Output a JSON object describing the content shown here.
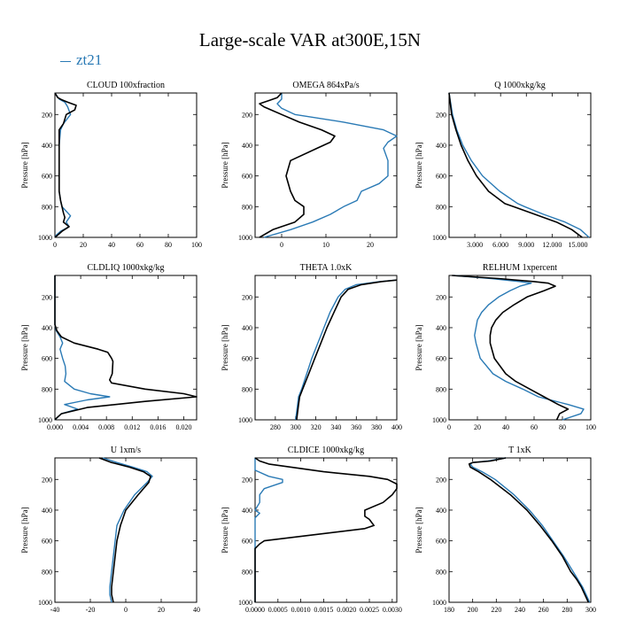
{
  "title": "Large-scale VAR at300E,15N",
  "legend": {
    "label": "zt21",
    "color": "#2a7ab5"
  },
  "colors": {
    "black_series": "#000000",
    "blue_series": "#2a7ab5"
  },
  "chart_data": [
    {
      "type": "line",
      "title": "CLOUD  100xfraction",
      "ylabel": "Pressure [hPa]",
      "ylim": [
        1000,
        60
      ],
      "yticks": [
        "200",
        "400",
        "600",
        "800",
        "1000"
      ],
      "xlim": [
        0,
        100
      ],
      "xticks": [
        "0",
        "20",
        "40",
        "60",
        "80",
        "100"
      ],
      "xtick_values": [
        0,
        20,
        40,
        60,
        80,
        100
      ],
      "series": [
        {
          "color": "black",
          "y": [
            60,
            90,
            105,
            120,
            140,
            170,
            200,
            260,
            300,
            400,
            500,
            600,
            700,
            760,
            800,
            840,
            870,
            900,
            930,
            960,
            985,
            1000
          ],
          "x": [
            0,
            2,
            5,
            9,
            15,
            14,
            8,
            6,
            3,
            3,
            3,
            3,
            3,
            4,
            5,
            6,
            7,
            6,
            10,
            5,
            2,
            0
          ]
        },
        {
          "color": "blue",
          "y": [
            60,
            100,
            120,
            150,
            200,
            260,
            300,
            400,
            500,
            600,
            700,
            760,
            800,
            830,
            860,
            900,
            930,
            960,
            985,
            1000
          ],
          "x": [
            0,
            3,
            7,
            9,
            11,
            6,
            4,
            3,
            3,
            3,
            3,
            4,
            5,
            8,
            11,
            8,
            10,
            4,
            1,
            0
          ]
        }
      ]
    },
    {
      "type": "line",
      "title": "OMEGA  864xPa/s",
      "ylabel": "Pressure [hPa]",
      "ylim": [
        1000,
        60
      ],
      "yticks": [
        "200",
        "400",
        "600",
        "800",
        "1000"
      ],
      "xlim": [
        -6,
        26
      ],
      "xticks": [
        "0",
        "10",
        "20"
      ],
      "xtick_values": [
        0,
        10,
        20
      ],
      "series": [
        {
          "color": "black",
          "y": [
            60,
            90,
            110,
            130,
            150,
            200,
            250,
            300,
            340,
            380,
            420,
            500,
            600,
            700,
            760,
            800,
            850,
            900,
            950,
            1000
          ],
          "x": [
            0,
            -1,
            -3,
            -5,
            -4,
            0,
            4,
            9,
            12,
            11,
            8,
            2,
            1,
            2,
            3,
            5,
            5,
            3,
            -2,
            -5
          ]
        },
        {
          "color": "blue",
          "y": [
            60,
            100,
            130,
            160,
            200,
            250,
            300,
            340,
            380,
            420,
            500,
            600,
            650,
            700,
            760,
            800,
            850,
            900,
            950,
            1000
          ],
          "x": [
            0,
            0,
            -1,
            0,
            3,
            14,
            23,
            26,
            24,
            23,
            24,
            24,
            22,
            18,
            17,
            14,
            11,
            7,
            2,
            -4
          ]
        }
      ]
    },
    {
      "type": "line",
      "title": "Q  1000xkg/kg",
      "ylabel": "Pressure [hPa]",
      "ylim": [
        1000,
        60
      ],
      "yticks": [
        "200",
        "400",
        "600",
        "800",
        "1000"
      ],
      "xlim": [
        0,
        16.5
      ],
      "xticks": [
        "3.000",
        "6.000",
        "9.000",
        "12.000",
        "15.000"
      ],
      "xtick_values": [
        3,
        6,
        9,
        12,
        15
      ],
      "series": [
        {
          "color": "black",
          "y": [
            60,
            200,
            300,
            400,
            500,
            600,
            700,
            780,
            800,
            850,
            900,
            950,
            1000
          ],
          "x": [
            0,
            0.3,
            0.8,
            1.4,
            2.2,
            3.2,
            4.6,
            6.5,
            7.5,
            10,
            12.5,
            14.3,
            15.5
          ]
        },
        {
          "color": "blue",
          "y": [
            60,
            200,
            300,
            400,
            500,
            600,
            700,
            780,
            800,
            850,
            900,
            950,
            1000
          ],
          "x": [
            0,
            0.4,
            0.9,
            1.6,
            2.6,
            3.9,
            5.9,
            8,
            8.8,
            11,
            13.5,
            15.3,
            16.3
          ]
        }
      ]
    },
    {
      "type": "line",
      "title": "CLDLIQ  1000xkg/kg",
      "ylabel": "Pressure [hPa]",
      "ylim": [
        1000,
        60
      ],
      "yticks": [
        "200",
        "400",
        "600",
        "800",
        "1000"
      ],
      "xlim": [
        0,
        0.022
      ],
      "xticks": [
        "0.000",
        "0.004",
        "0.008",
        "0.012",
        "0.016",
        "0.020"
      ],
      "xtick_values": [
        0,
        0.004,
        0.008,
        0.012,
        0.016,
        0.02
      ],
      "series": [
        {
          "color": "black",
          "y": [
            60,
            380,
            420,
            460,
            500,
            540,
            560,
            600,
            620,
            700,
            740,
            760,
            800,
            830,
            850,
            880,
            920,
            960,
            990,
            1000
          ],
          "x": [
            0,
            0,
            0.0003,
            0.001,
            0.003,
            0.0067,
            0.0082,
            0.0088,
            0.009,
            0.0089,
            0.0085,
            0.0088,
            0.014,
            0.02,
            0.022,
            0.014,
            0.005,
            0.001,
            0.0002,
            0
          ]
        },
        {
          "color": "blue",
          "y": [
            60,
            380,
            420,
            460,
            500,
            540,
            600,
            650,
            700,
            750,
            800,
            830,
            850,
            870,
            900,
            930,
            960,
            1000
          ],
          "x": [
            0,
            0,
            0.0002,
            0.0008,
            0.0012,
            0.0008,
            0.0012,
            0.0016,
            0.0017,
            0.0015,
            0.003,
            0.0055,
            0.0085,
            0.005,
            0.0015,
            0.0035,
            0.001,
            0
          ]
        }
      ]
    },
    {
      "type": "line",
      "title": "THETA  1.0xK",
      "ylabel": "Pressure [hPa]",
      "ylim": [
        1000,
        60
      ],
      "yticks": [
        "200",
        "400",
        "600",
        "800",
        "1000"
      ],
      "xlim": [
        260,
        400
      ],
      "xticks": [
        "280",
        "300",
        "320",
        "340",
        "360",
        "380",
        "400"
      ],
      "xtick_values": [
        280,
        300,
        320,
        340,
        360,
        380,
        400
      ],
      "series": [
        {
          "color": "black",
          "y": [
            90,
            100,
            120,
            150,
            200,
            300,
            400,
            500,
            600,
            700,
            800,
            850,
            900,
            950,
            1000
          ],
          "x": [
            400,
            385,
            365,
            352,
            345,
            338,
            331,
            325,
            319,
            313,
            307,
            304,
            303,
            302,
            301
          ]
        },
        {
          "color": "blue",
          "y": [
            90,
            100,
            120,
            150,
            200,
            300,
            400,
            500,
            600,
            700,
            800,
            850,
            900,
            950,
            1000
          ],
          "x": [
            400,
            383,
            360,
            349,
            342,
            334,
            328,
            322,
            316,
            311,
            306,
            303,
            302,
            301,
            300
          ]
        }
      ]
    },
    {
      "type": "line",
      "title": "RELHUM  1xpercent",
      "ylabel": "Pressure [hPa]",
      "ylim": [
        1000,
        60
      ],
      "yticks": [
        "200",
        "400",
        "600",
        "800",
        "1000"
      ],
      "xlim": [
        0,
        100
      ],
      "xticks": [
        "0",
        "20",
        "40",
        "60",
        "80",
        "100"
      ],
      "xtick_values": [
        0,
        20,
        40,
        60,
        80,
        100
      ],
      "series": [
        {
          "color": "black",
          "y": [
            60,
            80,
            100,
            110,
            130,
            160,
            200,
            250,
            300,
            350,
            400,
            450,
            500,
            600,
            700,
            750,
            800,
            850,
            900,
            930,
            960,
            1000
          ],
          "x": [
            2,
            35,
            60,
            70,
            75,
            67,
            55,
            46,
            38,
            33,
            30,
            29,
            29,
            32,
            40,
            47,
            57,
            67,
            77,
            84,
            78,
            76
          ]
        },
        {
          "color": "blue",
          "y": [
            60,
            80,
            100,
            110,
            130,
            160,
            200,
            250,
            300,
            350,
            400,
            450,
            500,
            600,
            700,
            750,
            800,
            850,
            900,
            930,
            960,
            1000
          ],
          "x": [
            3,
            30,
            50,
            58,
            50,
            43,
            35,
            28,
            23,
            20,
            19,
            18,
            19,
            22,
            31,
            40,
            52,
            63,
            84,
            95,
            93,
            80
          ]
        }
      ]
    },
    {
      "type": "line",
      "title": "U  1xm/s",
      "ylabel": "Pressure [hPa]",
      "ylim": [
        1000,
        60
      ],
      "yticks": [
        "200",
        "400",
        "600",
        "800",
        "1000"
      ],
      "xlim": [
        -40,
        40
      ],
      "xticks": [
        "-40",
        "-20",
        "0",
        "20",
        "40"
      ],
      "xtick_values": [
        -40,
        -20,
        0,
        20,
        40
      ],
      "series": [
        {
          "color": "black",
          "y": [
            60,
            90,
            120,
            150,
            180,
            220,
            300,
            400,
            500,
            600,
            700,
            800,
            900,
            950,
            1000
          ],
          "x": [
            -15,
            -8,
            2,
            10,
            14,
            13,
            7,
            0,
            -3,
            -5,
            -6,
            -7,
            -8,
            -8,
            -7
          ]
        },
        {
          "color": "blue",
          "y": [
            60,
            90,
            120,
            150,
            180,
            220,
            300,
            400,
            500,
            600,
            700,
            800,
            900,
            950,
            1000
          ],
          "x": [
            -13,
            -5,
            4,
            12,
            15,
            12,
            5,
            -1,
            -5,
            -6,
            -7,
            -8,
            -9,
            -9,
            -8
          ]
        }
      ]
    },
    {
      "type": "line",
      "title": "CLDICE  1000xkg/kg",
      "ylabel": "Pressure [hPa]",
      "ylim": [
        1000,
        60
      ],
      "yticks": [
        "200",
        "400",
        "600",
        "800",
        "1000"
      ],
      "xlim": [
        0,
        0.0031
      ],
      "xticks": [
        "0.0000",
        "0.0005",
        "0.0010",
        "0.0015",
        "0.0020",
        "0.0025",
        "0.0030"
      ],
      "xtick_values": [
        0,
        0.0005,
        0.001,
        0.0015,
        0.002,
        0.0025,
        0.003
      ],
      "series": [
        {
          "color": "black",
          "y": [
            60,
            80,
            100,
            150,
            180,
            200,
            230,
            260,
            300,
            350,
            400,
            440,
            460,
            500,
            520,
            560,
            600,
            620,
            650,
            1000
          ],
          "x": [
            0,
            0.0001,
            0.0003,
            0.0015,
            0.0025,
            0.0029,
            0.0031,
            0.0031,
            0.003,
            0.0028,
            0.0024,
            0.0024,
            0.0025,
            0.0026,
            0.0024,
            0.0013,
            0.0002,
            0.0001,
            0,
            0
          ]
        },
        {
          "color": "blue",
          "y": [
            60,
            140,
            180,
            200,
            220,
            240,
            260,
            300,
            350,
            400,
            420,
            450,
            1000
          ],
          "x": [
            0,
            0,
            0.0003,
            0.0006,
            0.0006,
            0.0004,
            0.0002,
            0.0001,
            0.0001,
            0,
            0.0001,
            0,
            0
          ]
        }
      ]
    },
    {
      "type": "line",
      "title": "T  1xK",
      "ylabel": "Pressure [hPa]",
      "ylim": [
        1000,
        60
      ],
      "yticks": [
        "200",
        "400",
        "600",
        "800",
        "1000"
      ],
      "xlim": [
        180,
        300
      ],
      "xticks": [
        "180",
        "200",
        "220",
        "240",
        "260",
        "280",
        "300"
      ],
      "xtick_values": [
        180,
        200,
        220,
        240,
        260,
        280,
        300
      ],
      "series": [
        {
          "color": "black",
          "y": [
            60,
            80,
            90,
            100,
            120,
            150,
            200,
            300,
            400,
            500,
            600,
            700,
            800,
            850,
            900,
            950,
            1000
          ],
          "x": [
            228,
            215,
            200,
            197,
            198,
            205,
            215,
            232,
            246,
            257,
            267,
            276,
            283,
            288,
            292,
            295,
            298
          ]
        },
        {
          "color": "blue",
          "y": [
            60,
            80,
            90,
            100,
            120,
            150,
            200,
            300,
            400,
            500,
            600,
            700,
            800,
            850,
            900,
            950,
            1000
          ],
          "x": [
            228,
            213,
            200,
            198,
            200,
            208,
            219,
            235,
            248,
            259,
            268,
            277,
            285,
            289,
            293,
            296,
            299
          ]
        }
      ]
    }
  ]
}
